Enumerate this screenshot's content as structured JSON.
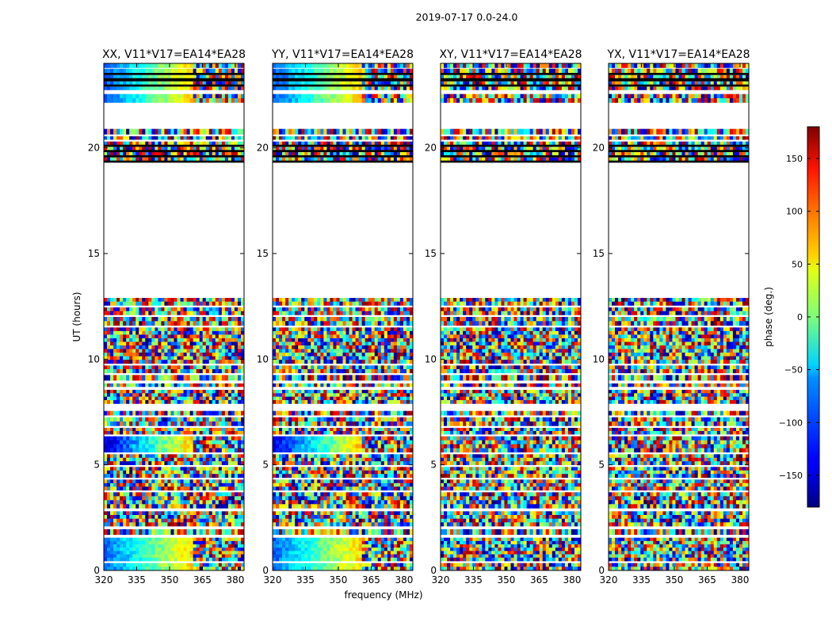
{
  "chart_data": {
    "type": "heatmap",
    "suptitle": "2019-07-17 0.0-24.0",
    "xlabel": "frequency (MHz)",
    "ylabel": "UT (hours)",
    "xlim": [
      320,
      384
    ],
    "ylim": [
      0,
      24
    ],
    "xticks": [
      320,
      335,
      350,
      365,
      380
    ],
    "yticks": [
      0,
      5,
      10,
      15,
      20
    ],
    "colorbar": {
      "label": "phase (deg.)",
      "range": [
        -180,
        180
      ],
      "ticks": [
        150,
        100,
        50,
        0,
        -50,
        -100,
        -150
      ],
      "tick_labels": [
        "150",
        "100",
        "50",
        "0",
        "−50",
        "−100",
        "−150"
      ],
      "colormap": "jet"
    },
    "panels": [
      {
        "title": "XX, V11*V17=EA14*EA28",
        "coherent": true
      },
      {
        "title": "YY, V11*V17=EA14*EA28",
        "coherent": true
      },
      {
        "title": "XY, V11*V17=EA14*EA28",
        "coherent": false
      },
      {
        "title": "YX, V11*V17=EA14*EA28",
        "coherent": false
      }
    ],
    "data_bands_ut": [
      [
        0.0,
        0.35
      ],
      [
        0.45,
        1.55
      ],
      [
        1.7,
        1.95
      ],
      [
        2.1,
        2.8
      ],
      [
        2.95,
        3.7
      ],
      [
        3.8,
        4.3
      ],
      [
        4.4,
        4.9
      ],
      [
        5.0,
        5.5
      ],
      [
        5.6,
        6.35
      ],
      [
        6.45,
        6.75
      ],
      [
        6.85,
        7.25
      ],
      [
        7.35,
        7.55
      ],
      [
        7.9,
        8.55
      ],
      [
        8.7,
        8.85
      ],
      [
        9.0,
        9.25
      ],
      [
        9.35,
        9.7
      ],
      [
        9.8,
        11.5
      ],
      [
        11.6,
        12.0
      ],
      [
        12.1,
        12.45
      ],
      [
        12.55,
        12.9
      ],
      [
        19.4,
        19.55
      ],
      [
        19.65,
        19.8
      ],
      [
        19.9,
        20.05
      ],
      [
        20.15,
        20.3
      ],
      [
        20.4,
        20.55
      ],
      [
        20.65,
        20.9
      ],
      [
        22.15,
        22.55
      ],
      [
        22.75,
        22.9
      ],
      [
        23.0,
        23.15
      ],
      [
        23.3,
        23.45
      ],
      [
        23.55,
        23.75
      ],
      [
        23.8,
        24.0
      ]
    ]
  }
}
